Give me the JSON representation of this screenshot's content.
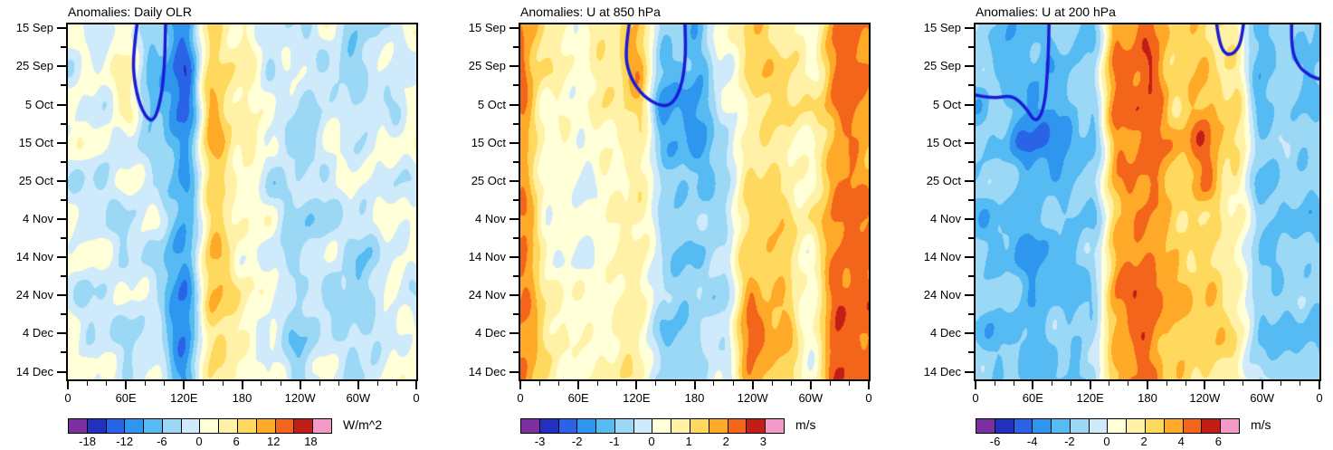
{
  "palette": [
    "#7d2fa0",
    "#2230c0",
    "#2a64e6",
    "#2e96ee",
    "#55bbf2",
    "#9bd8f6",
    "#cfeafa",
    "#ffffd8",
    "#fff2a6",
    "#ffd95e",
    "#ffa928",
    "#f4651c",
    "#c31d17",
    "#f59ac8"
  ],
  "contour_color": "#1b1bd6",
  "chart_data": [
    {
      "type": "heatmap",
      "title": "Anomalies: Daily OLR",
      "unit": "W/m^2",
      "x_tick_labels": [
        "0",
        "60E",
        "120E",
        "180",
        "120W",
        "60W",
        "0"
      ],
      "y_tick_labels": [
        "15 Sep",
        "25 Sep",
        "5 Oct",
        "15 Oct",
        "25 Oct",
        "4 Nov",
        "14 Nov",
        "24 Nov",
        "4 Dec",
        "14 Dec"
      ],
      "lons": [
        0,
        30,
        60,
        90,
        120,
        150,
        180,
        210,
        240,
        270,
        300,
        330,
        360
      ],
      "xlim": [
        0,
        360
      ],
      "step": 3,
      "levels": [
        -18,
        -15,
        -12,
        -9,
        -6,
        -3,
        0,
        3,
        6,
        9,
        12,
        15,
        18
      ],
      "colorbar_tick_labels": [
        "-18",
        "-12",
        "-6",
        "0",
        "6",
        "12",
        "18"
      ],
      "values": [
        [
          1,
          -2,
          1,
          -4,
          -11,
          7,
          2,
          -1,
          -4,
          1,
          -5,
          -2,
          1
        ],
        [
          -2,
          1,
          4,
          -8,
          -13.5,
          7,
          5,
          -2,
          1,
          -4,
          -5,
          1,
          -2
        ],
        [
          1,
          -2,
          4,
          -7,
          -13.5,
          9.5,
          3,
          1,
          -4,
          -2,
          -2,
          -4,
          1
        ],
        [
          2,
          1,
          -2,
          -4,
          -10,
          10,
          5,
          1,
          -6,
          1,
          -2,
          1,
          2
        ],
        [
          -2,
          -4,
          1,
          -2,
          -9.5,
          7,
          2,
          -4,
          -2,
          -2,
          1,
          -2,
          -2
        ],
        [
          1,
          -2,
          -4,
          1,
          -9.5,
          7,
          3,
          1,
          -6,
          -4,
          -2,
          1,
          1
        ],
        [
          1,
          1,
          -2,
          -4,
          -10,
          9.5,
          2,
          -2,
          -4,
          1,
          -6,
          -2,
          1
        ],
        [
          -2,
          -4,
          1,
          -2,
          -12.5,
          9.5,
          5,
          1,
          -2,
          -4,
          -6,
          1,
          -2
        ],
        [
          1,
          -2,
          -4,
          -2,
          -12,
          7,
          3,
          -2,
          -6,
          -2,
          -4,
          -2,
          1
        ],
        [
          1,
          1,
          -2,
          1,
          -10,
          7,
          2,
          1,
          -4,
          1,
          -4,
          1,
          1
        ]
      ],
      "contours": [
        [
          [
            72,
            -0.2
          ],
          [
            67,
            0.7
          ],
          [
            69,
            1.5
          ],
          [
            77,
            2.2
          ],
          [
            88,
            2.5
          ],
          [
            96,
            1.9
          ],
          [
            100,
            1.0
          ],
          [
            101,
            -0.2
          ]
        ]
      ]
    },
    {
      "type": "heatmap",
      "title": "Anomalies: U at 850 hPa",
      "unit": "m/s",
      "x_tick_labels": [
        "0",
        "60E",
        "120E",
        "180",
        "120W",
        "60W",
        "0"
      ],
      "y_tick_labels": [
        "15 Sep",
        "25 Sep",
        "5 Oct",
        "15 Oct",
        "25 Oct",
        "4 Nov",
        "14 Nov",
        "24 Nov",
        "4 Dec",
        "14 Dec"
      ],
      "lons": [
        0,
        30,
        60,
        90,
        120,
        150,
        180,
        210,
        240,
        270,
        300,
        330,
        360
      ],
      "xlim": [
        0,
        360
      ],
      "step": 0.5,
      "levels": [
        -3,
        -2.5,
        -2,
        -1.5,
        -1,
        -0.5,
        0,
        0.5,
        1,
        1.5,
        2,
        2.5,
        3
      ],
      "colorbar_tick_labels": [
        "-3",
        "-2",
        "-1",
        "0",
        "1",
        "2",
        "3"
      ],
      "values": [
        [
          2.1,
          0.8,
          0.3,
          0.8,
          1.3,
          -0.7,
          -1.2,
          0.3,
          1.3,
          0.8,
          0.3,
          2.2,
          2.1
        ],
        [
          2.1,
          0.8,
          0.3,
          0.8,
          1.8,
          -1.2,
          -1.2,
          -0.2,
          1.3,
          1.3,
          0.3,
          2.2,
          2.1
        ],
        [
          2.1,
          0.3,
          0.3,
          0.8,
          1.3,
          -1.7,
          -1.7,
          -0.2,
          0.8,
          1.3,
          0.8,
          2.2,
          2.1
        ],
        [
          1.7,
          0.3,
          0.3,
          0.3,
          0.8,
          -1.2,
          -1.7,
          -0.7,
          0.8,
          0.8,
          0.3,
          1.8,
          1.7
        ],
        [
          1.7,
          0.3,
          -0.2,
          0.3,
          0.8,
          -0.7,
          -1.2,
          -0.7,
          1.3,
          0.8,
          0.3,
          2.2,
          1.7
        ],
        [
          2.1,
          0.3,
          0.3,
          0.3,
          0.8,
          -0.7,
          -0.7,
          -0.7,
          1.3,
          1.3,
          0.8,
          2.2,
          2.1
        ],
        [
          2.1,
          0.3,
          -0.2,
          0.3,
          0.8,
          -0.7,
          -1.2,
          -0.2,
          1.3,
          1.3,
          0.3,
          2.2,
          2.1
        ],
        [
          2.1,
          0.8,
          0.3,
          0.3,
          0.8,
          -0.7,
          -0.7,
          -0.7,
          1.8,
          1.3,
          0.3,
          2.4,
          2.1
        ],
        [
          2.1,
          0.8,
          0.3,
          0.3,
          0.8,
          -1.2,
          -0.7,
          -0.2,
          2.3,
          1.8,
          0.3,
          2.4,
          2.1
        ],
        [
          2.1,
          0.8,
          0.3,
          0.8,
          0.8,
          -0.7,
          -0.7,
          -0.2,
          1.8,
          1.3,
          0.3,
          2.4,
          2.1
        ]
      ],
      "contours": [
        [
          [
            113,
            -0.2
          ],
          [
            108,
            0.6
          ],
          [
            112,
            1.2
          ],
          [
            124,
            1.7
          ],
          [
            140,
            2.0
          ],
          [
            155,
            2.05
          ],
          [
            166,
            1.6
          ],
          [
            171,
            0.8
          ],
          [
            170,
            -0.2
          ]
        ]
      ]
    },
    {
      "type": "heatmap",
      "title": "Anomalies: U at 200 hPa",
      "unit": "m/s",
      "x_tick_labels": [
        "0",
        "60E",
        "120E",
        "180",
        "120W",
        "60W",
        "0"
      ],
      "y_tick_labels": [
        "15 Sep",
        "25 Sep",
        "5 Oct",
        "15 Oct",
        "25 Oct",
        "4 Nov",
        "14 Nov",
        "24 Nov",
        "4 Dec",
        "14 Dec"
      ],
      "lons": [
        0,
        30,
        60,
        90,
        120,
        150,
        180,
        210,
        240,
        270,
        300,
        330,
        360
      ],
      "xlim": [
        0,
        360
      ],
      "step": 1,
      "levels": [
        -6,
        -5,
        -4,
        -3,
        -2,
        -1,
        0,
        1,
        2,
        3,
        4,
        5,
        6
      ],
      "colorbar_tick_labels": [
        "-6",
        "-4",
        "-2",
        "0",
        "2",
        "4",
        "6"
      ],
      "values": [
        [
          -1.5,
          -2.5,
          -2.5,
          -1.5,
          -2.5,
          3.6,
          4.4,
          2.4,
          2.4,
          1.5,
          -2.5,
          -1.5,
          -2.5
        ],
        [
          -1.5,
          -2.5,
          -2.5,
          -2.5,
          -1.5,
          4.4,
          4.8,
          2.4,
          2.8,
          1.5,
          -2.5,
          -1.5,
          -2.5
        ],
        [
          -2.5,
          -1.5,
          -3.5,
          -2.5,
          -1.5,
          4.4,
          4.8,
          2.4,
          3.2,
          2.4,
          -2.5,
          -1.5,
          -2.5
        ],
        [
          -1.5,
          -2.5,
          -4.5,
          -3.5,
          -2.5,
          3.6,
          4.6,
          3.4,
          4.6,
          2.4,
          -1.5,
          -1.5,
          -1.5
        ],
        [
          -1.5,
          -1.5,
          -2.5,
          -2.5,
          -1.5,
          3.6,
          4.4,
          2.4,
          3.8,
          1.5,
          -2.5,
          -1.5,
          -1.5
        ],
        [
          -2.5,
          -2.5,
          -2.5,
          -1.5,
          -2.5,
          2.8,
          4.2,
          2.4,
          2.2,
          1.5,
          -1.5,
          -2.5,
          -2.5
        ],
        [
          -1.5,
          -2.5,
          -3.5,
          -2.5,
          -1.5,
          3.6,
          4.2,
          2.4,
          2.2,
          1.5,
          -2.5,
          -1.5,
          -1.5
        ],
        [
          -1.5,
          -1.5,
          -2.5,
          -2.5,
          -2.5,
          4.4,
          4.8,
          3.4,
          2.8,
          1.5,
          -1.5,
          -1.5,
          -1.5
        ],
        [
          -2.5,
          -2.5,
          -2.5,
          -1.5,
          -1.5,
          3.6,
          4.4,
          2.4,
          2.8,
          2.4,
          -2.5,
          -2.5,
          -2.5
        ],
        [
          -1.5,
          -1.5,
          -2.5,
          -2.5,
          -1.5,
          3.6,
          4.2,
          2.4,
          2.2,
          1.5,
          -1.5,
          -1.5,
          -1.5
        ]
      ],
      "contours": [
        [
          [
            0,
            1.75
          ],
          [
            18,
            1.85
          ],
          [
            38,
            1.75
          ],
          [
            52,
            2.05
          ],
          [
            63,
            2.5
          ],
          [
            72,
            2.1
          ],
          [
            76,
            1.0
          ],
          [
            77,
            -0.2
          ]
        ],
        [
          [
            252,
            -0.2
          ],
          [
            255,
            0.45
          ],
          [
            265,
            0.75
          ],
          [
            277,
            0.5
          ],
          [
            281,
            -0.2
          ]
        ],
        [
          [
            331,
            -0.2
          ],
          [
            330,
            0.5
          ],
          [
            338,
            1.0
          ],
          [
            350,
            1.25
          ],
          [
            362,
            1.35
          ]
        ]
      ]
    }
  ]
}
